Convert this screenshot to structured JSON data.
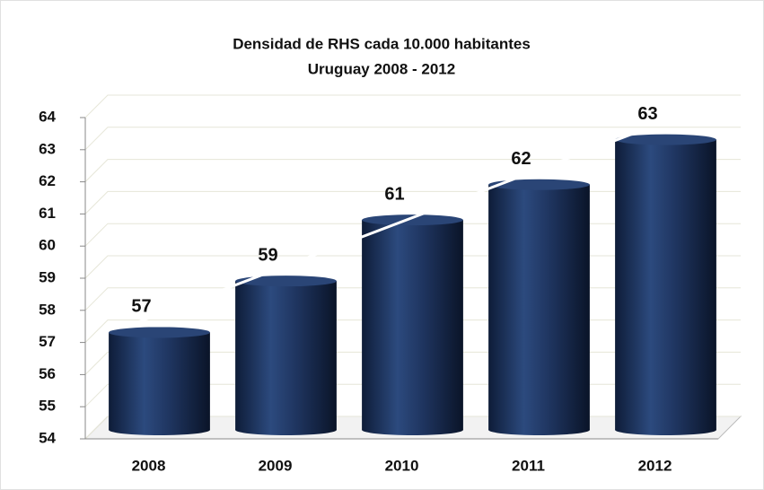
{
  "chart_data": {
    "type": "bar",
    "title": "Densidad de RHS cada 10.000 habitantes",
    "subtitle": "Uruguay 2008 - 2012",
    "categories": [
      "2008",
      "2009",
      "2010",
      "2011",
      "2012"
    ],
    "values": [
      57.2,
      58.8,
      60.7,
      61.8,
      63.2
    ],
    "value_labels": [
      "57",
      "59",
      "61",
      "62",
      "63"
    ],
    "color": "#1f3560",
    "ylim": [
      54,
      64
    ],
    "yticks": [
      54,
      55,
      56,
      57,
      58,
      59,
      60,
      61,
      62,
      63,
      64
    ],
    "grid": true,
    "trendline": "linear"
  }
}
